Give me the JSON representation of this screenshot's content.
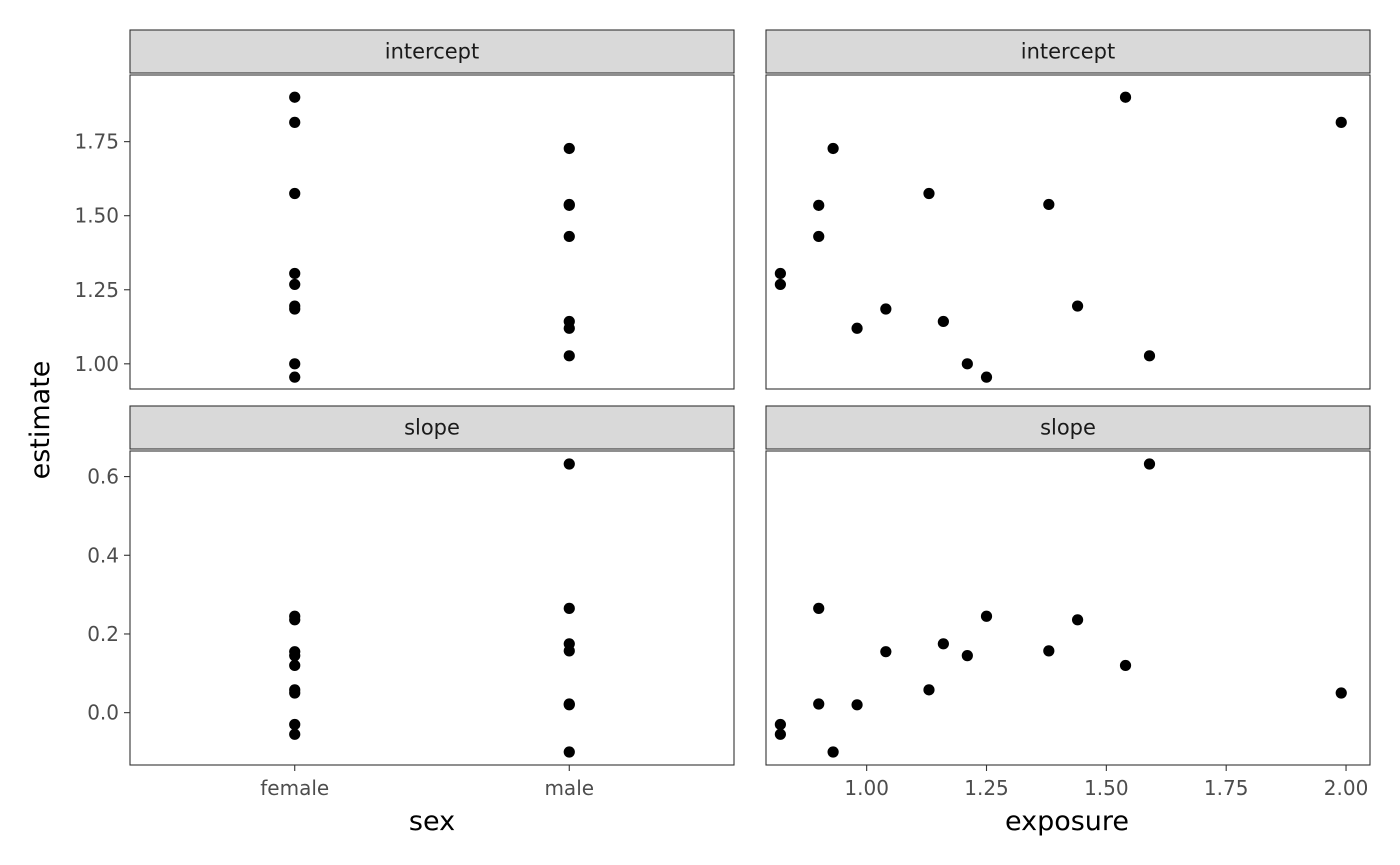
{
  "chart_data": {
    "type": "scatter",
    "y_title": "estimate",
    "facet_rows": [
      "intercept",
      "slope"
    ],
    "row_ylim": {
      "intercept": [
        0.915,
        1.975
      ],
      "slope": [
        -0.133,
        0.665
      ]
    },
    "row_yticks": {
      "intercept": [
        1.0,
        1.25,
        1.5,
        1.75
      ],
      "slope": [
        0.0,
        0.2,
        0.4,
        0.6
      ]
    },
    "row_ytick_labels": {
      "intercept": [
        "1.00",
        "1.25",
        "1.50",
        "1.75"
      ],
      "slope": [
        "0.0",
        "0.2",
        "0.4",
        "0.6"
      ]
    },
    "columns": [
      {
        "x_title": "sex",
        "x_type": "categorical",
        "categories": [
          "female",
          "male"
        ],
        "x_tick_labels": [
          "female",
          "male"
        ],
        "panels": {
          "intercept": [
            {
              "x": "female",
              "y": 1.9
            },
            {
              "x": "female",
              "y": 1.815
            },
            {
              "x": "female",
              "y": 1.575
            },
            {
              "x": "female",
              "y": 1.305
            },
            {
              "x": "female",
              "y": 1.268
            },
            {
              "x": "female",
              "y": 1.195
            },
            {
              "x": "female",
              "y": 1.185
            },
            {
              "x": "female",
              "y": 1.0
            },
            {
              "x": "female",
              "y": 0.955
            },
            {
              "x": "male",
              "y": 1.727
            },
            {
              "x": "male",
              "y": 1.538
            },
            {
              "x": "male",
              "y": 1.535
            },
            {
              "x": "male",
              "y": 1.43
            },
            {
              "x": "male",
              "y": 1.143
            },
            {
              "x": "male",
              "y": 1.12
            },
            {
              "x": "male",
              "y": 1.027
            }
          ],
          "slope": [
            {
              "x": "female",
              "y": 0.245
            },
            {
              "x": "female",
              "y": 0.236
            },
            {
              "x": "female",
              "y": 0.155
            },
            {
              "x": "female",
              "y": 0.145
            },
            {
              "x": "female",
              "y": 0.12
            },
            {
              "x": "female",
              "y": 0.058
            },
            {
              "x": "female",
              "y": 0.05
            },
            {
              "x": "female",
              "y": -0.03
            },
            {
              "x": "female",
              "y": -0.055
            },
            {
              "x": "male",
              "y": 0.632
            },
            {
              "x": "male",
              "y": 0.265
            },
            {
              "x": "male",
              "y": 0.175
            },
            {
              "x": "male",
              "y": 0.157
            },
            {
              "x": "male",
              "y": 0.022
            },
            {
              "x": "male",
              "y": 0.02
            },
            {
              "x": "male",
              "y": -0.1
            }
          ]
        }
      },
      {
        "x_title": "exposure",
        "x_type": "numeric",
        "xlim": [
          0.79,
          2.05
        ],
        "x_ticks": [
          1.0,
          1.25,
          1.5,
          1.75,
          2.0
        ],
        "x_tick_labels": [
          "1.00",
          "1.25",
          "1.50",
          "1.75",
          "2.00"
        ],
        "panels": {
          "intercept": [
            {
              "x": 0.82,
              "y": 1.305
            },
            {
              "x": 0.82,
              "y": 1.268
            },
            {
              "x": 0.9,
              "y": 1.535
            },
            {
              "x": 0.9,
              "y": 1.43
            },
            {
              "x": 0.93,
              "y": 1.727
            },
            {
              "x": 0.98,
              "y": 1.12
            },
            {
              "x": 1.04,
              "y": 1.185
            },
            {
              "x": 1.13,
              "y": 1.575
            },
            {
              "x": 1.16,
              "y": 1.143
            },
            {
              "x": 1.21,
              "y": 1.0
            },
            {
              "x": 1.25,
              "y": 0.955
            },
            {
              "x": 1.38,
              "y": 1.538
            },
            {
              "x": 1.44,
              "y": 1.195
            },
            {
              "x": 1.54,
              "y": 1.9
            },
            {
              "x": 1.59,
              "y": 1.027
            },
            {
              "x": 1.99,
              "y": 1.815
            }
          ],
          "slope": [
            {
              "x": 0.82,
              "y": -0.03
            },
            {
              "x": 0.82,
              "y": -0.055
            },
            {
              "x": 0.9,
              "y": 0.265
            },
            {
              "x": 0.9,
              "y": 0.022
            },
            {
              "x": 0.93,
              "y": -0.1
            },
            {
              "x": 0.98,
              "y": 0.02
            },
            {
              "x": 1.04,
              "y": 0.155
            },
            {
              "x": 1.13,
              "y": 0.058
            },
            {
              "x": 1.16,
              "y": 0.175
            },
            {
              "x": 1.21,
              "y": 0.145
            },
            {
              "x": 1.25,
              "y": 0.245
            },
            {
              "x": 1.38,
              "y": 0.157
            },
            {
              "x": 1.44,
              "y": 0.236
            },
            {
              "x": 1.54,
              "y": 0.12
            },
            {
              "x": 1.59,
              "y": 0.632
            },
            {
              "x": 1.99,
              "y": 0.05
            }
          ]
        }
      }
    ],
    "legend": "none",
    "grid": false
  }
}
